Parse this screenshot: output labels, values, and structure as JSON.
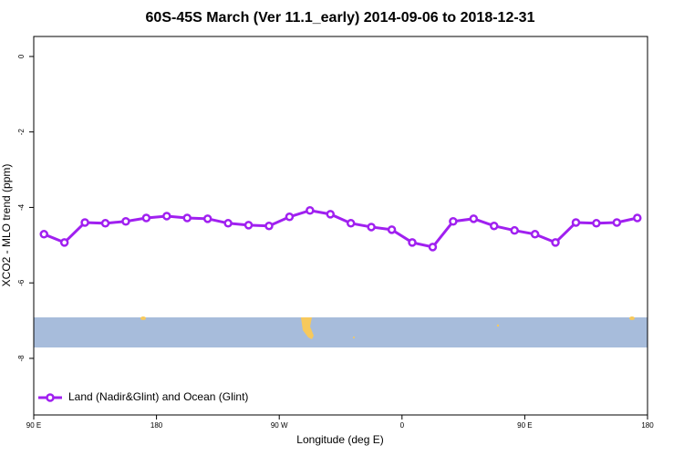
{
  "chart_data": {
    "type": "line",
    "title": "60S-45S March (Ver 11.1_early)   2014-09-06 to 2018-12-31",
    "x_label": "Longitude (deg E)",
    "y_label": "XCO2 - MLO trend (ppm)",
    "x": [
      97.5,
      112.5,
      127.5,
      142.5,
      157.5,
      172.5,
      187.5,
      202.5,
      217.5,
      232.5,
      247.5,
      262.5,
      277.5,
      292.5,
      307.5,
      322.5,
      337.5,
      352.5,
      367.5,
      382.5,
      397.5,
      412.5,
      427.5,
      442.5,
      457.5,
      472.5,
      487.5,
      502.5,
      517.5,
      532.5
    ],
    "series": [
      {
        "name": "Land (Nadir&Glint) and Ocean (Glint)",
        "color": "#a020f0",
        "values": [
          -4.71,
          -4.93,
          -4.4,
          -4.42,
          -4.37,
          -4.28,
          -4.23,
          -4.28,
          -4.3,
          -4.42,
          -4.47,
          -4.49,
          -4.25,
          -4.08,
          -4.18,
          -4.42,
          -4.52,
          -4.59,
          -4.93,
          -5.05,
          -4.37,
          -4.3,
          -4.49,
          -4.61,
          -4.71,
          -4.93,
          -4.4,
          -4.42,
          -4.4,
          -4.28
        ]
      }
    ],
    "xlim": [
      90,
      540
    ],
    "xticks": [
      {
        "value": 90,
        "label": "90 E"
      },
      {
        "value": 180,
        "label": "180"
      },
      {
        "value": 270,
        "label": "90 W"
      },
      {
        "value": 360,
        "label": "0"
      },
      {
        "value": 450,
        "label": "90 E"
      },
      {
        "value": 540,
        "label": "180"
      }
    ],
    "ylim": [
      -9.5,
      0.53
    ],
    "yticks": [
      0,
      -2,
      -4,
      -6,
      -8
    ],
    "legend": "bottom-left"
  }
}
